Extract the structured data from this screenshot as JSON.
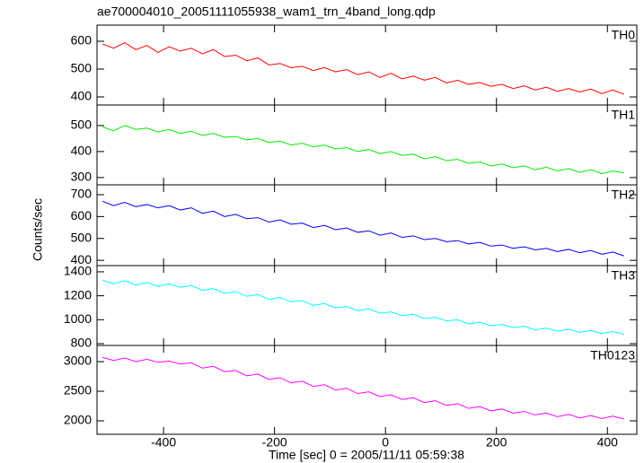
{
  "chart_data": [
    {
      "type": "line",
      "title": "ae700004010_20051111055938_wam1_trn_4band_long.qdp",
      "ylabel": "Counts/sec",
      "x": [
        -510,
        -490,
        -470,
        -450,
        -430,
        -410,
        -390,
        -370,
        -350,
        -330,
        -310,
        -290,
        -270,
        -250,
        -230,
        -210,
        -190,
        -170,
        -150,
        -130,
        -110,
        -90,
        -70,
        -50,
        -30,
        -10,
        10,
        30,
        50,
        70,
        90,
        110,
        130,
        150,
        170,
        190,
        210,
        230,
        250,
        270,
        290,
        310,
        330,
        350,
        370,
        390,
        410,
        430
      ],
      "series": [
        {
          "name": "TH0",
          "color": "#ff0000",
          "values": [
            590,
            575,
            595,
            570,
            585,
            560,
            580,
            565,
            575,
            555,
            570,
            545,
            550,
            530,
            540,
            515,
            520,
            505,
            510,
            495,
            505,
            490,
            498,
            480,
            490,
            470,
            485,
            465,
            475,
            460,
            470,
            450,
            460,
            445,
            452,
            438,
            445,
            430,
            440,
            425,
            435,
            420,
            430,
            418,
            428,
            412,
            425,
            410
          ]
        }
      ],
      "xlim": [
        -520,
        453
      ],
      "ylim": [
        371,
        658
      ],
      "yticks": [
        400,
        500,
        600
      ]
    },
    {
      "type": "line",
      "x": [
        -510,
        -490,
        -470,
        -450,
        -430,
        -410,
        -390,
        -370,
        -350,
        -330,
        -310,
        -290,
        -270,
        -250,
        -230,
        -210,
        -190,
        -170,
        -150,
        -130,
        -110,
        -90,
        -70,
        -50,
        -30,
        -10,
        10,
        30,
        50,
        70,
        90,
        110,
        130,
        150,
        170,
        190,
        210,
        230,
        250,
        270,
        290,
        310,
        330,
        350,
        370,
        390,
        410,
        430
      ],
      "series": [
        {
          "name": "TH1",
          "color": "#00ee00",
          "values": [
            495,
            480,
            500,
            485,
            490,
            475,
            485,
            470,
            478,
            462,
            470,
            455,
            458,
            445,
            450,
            435,
            440,
            425,
            432,
            418,
            425,
            410,
            415,
            400,
            408,
            392,
            400,
            385,
            390,
            372,
            380,
            365,
            370,
            355,
            360,
            345,
            352,
            338,
            345,
            330,
            340,
            325,
            335,
            320,
            330,
            315,
            325,
            318
          ]
        }
      ],
      "xlim": [
        -520,
        453
      ],
      "ylim": [
        272,
        579
      ],
      "yticks": [
        300,
        400,
        500
      ]
    },
    {
      "type": "line",
      "x": [
        -510,
        -490,
        -470,
        -450,
        -430,
        -410,
        -390,
        -370,
        -350,
        -330,
        -310,
        -290,
        -270,
        -250,
        -230,
        -210,
        -190,
        -170,
        -150,
        -130,
        -110,
        -90,
        -70,
        -50,
        -30,
        -10,
        10,
        30,
        50,
        70,
        90,
        110,
        130,
        150,
        170,
        190,
        210,
        230,
        250,
        270,
        290,
        310,
        330,
        350,
        370,
        390,
        410,
        430
      ],
      "series": [
        {
          "name": "TH2",
          "color": "#0000ee",
          "values": [
            670,
            650,
            665,
            645,
            655,
            640,
            650,
            630,
            640,
            615,
            625,
            600,
            610,
            590,
            595,
            575,
            585,
            565,
            570,
            550,
            560,
            540,
            548,
            528,
            535,
            515,
            525,
            505,
            512,
            495,
            500,
            485,
            490,
            475,
            482,
            465,
            470,
            455,
            462,
            448,
            455,
            440,
            450,
            435,
            445,
            428,
            438,
            420
          ]
        }
      ],
      "xlim": [
        -520,
        453
      ],
      "ylim": [
        376,
        745
      ],
      "yticks": [
        400,
        500,
        600,
        700
      ]
    },
    {
      "type": "line",
      "x": [
        -510,
        -490,
        -470,
        -450,
        -430,
        -410,
        -390,
        -370,
        -350,
        -330,
        -310,
        -290,
        -270,
        -250,
        -230,
        -210,
        -190,
        -170,
        -150,
        -130,
        -110,
        -90,
        -70,
        -50,
        -30,
        -10,
        10,
        30,
        50,
        70,
        90,
        110,
        130,
        150,
        170,
        190,
        210,
        230,
        250,
        270,
        290,
        310,
        330,
        350,
        370,
        390,
        410,
        430
      ],
      "series": [
        {
          "name": "TH3",
          "color": "#00ffff",
          "values": [
            1330,
            1300,
            1325,
            1290,
            1310,
            1280,
            1300,
            1270,
            1285,
            1245,
            1260,
            1220,
            1235,
            1195,
            1210,
            1170,
            1185,
            1150,
            1160,
            1120,
            1135,
            1100,
            1110,
            1075,
            1090,
            1055,
            1065,
            1035,
            1045,
            1010,
            1020,
            990,
            1000,
            965,
            980,
            950,
            960,
            935,
            945,
            915,
            930,
            905,
            920,
            895,
            910,
            885,
            900,
            880
          ]
        }
      ],
      "xlim": [
        -520,
        453
      ],
      "ylim": [
        785,
        1452
      ],
      "yticks": [
        800,
        1000,
        1200,
        1400
      ]
    },
    {
      "type": "line",
      "xlabel": "Time [sec] 0 = 2005/11/11 05:59:38",
      "x": [
        -510,
        -490,
        -470,
        -450,
        -430,
        -410,
        -390,
        -370,
        -350,
        -330,
        -310,
        -290,
        -270,
        -250,
        -230,
        -210,
        -190,
        -170,
        -150,
        -130,
        -110,
        -90,
        -70,
        -50,
        -30,
        -10,
        10,
        30,
        50,
        70,
        90,
        110,
        130,
        150,
        170,
        190,
        210,
        230,
        250,
        270,
        290,
        310,
        330,
        350,
        370,
        390,
        410,
        430
      ],
      "series": [
        {
          "name": "TH0123",
          "color": "#ff00ff",
          "values": [
            3070,
            3020,
            3060,
            3000,
            3040,
            2990,
            3010,
            2960,
            2980,
            2890,
            2920,
            2830,
            2850,
            2760,
            2790,
            2700,
            2730,
            2640,
            2670,
            2580,
            2610,
            2520,
            2550,
            2460,
            2490,
            2410,
            2440,
            2360,
            2390,
            2310,
            2340,
            2260,
            2290,
            2210,
            2240,
            2170,
            2200,
            2130,
            2160,
            2100,
            2130,
            2070,
            2110,
            2050,
            2090,
            2040,
            2080,
            2030
          ]
        }
      ],
      "xlim": [
        -520,
        453
      ],
      "ylim": [
        1773,
        3273
      ],
      "yticks": [
        2000,
        2500,
        3000
      ],
      "xticks": [
        -400,
        -200,
        0,
        200,
        400
      ]
    }
  ]
}
